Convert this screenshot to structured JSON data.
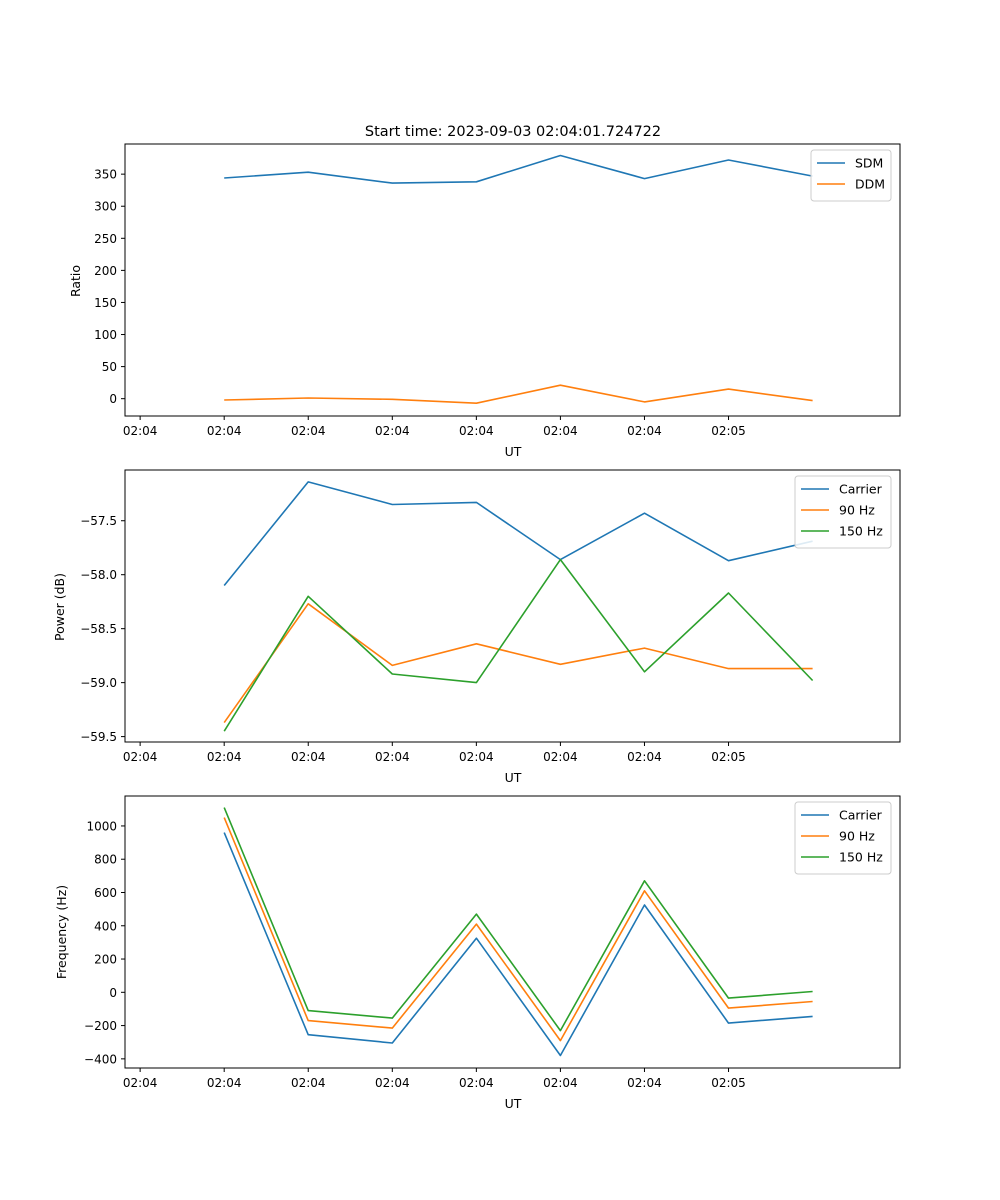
{
  "chart_data": [
    {
      "type": "line",
      "title": "Start time: 2023-09-03 02:04:01.724722",
      "xlabel": "UT",
      "ylabel": "Ratio",
      "x_tick_labels": [
        "02:04",
        "02:04",
        "02:04",
        "02:04",
        "02:04",
        "02:04",
        "02:04",
        "02:05"
      ],
      "x": [
        0.5,
        1.0,
        1.5,
        2.0,
        2.5,
        3.0,
        3.5,
        4.0
      ],
      "xlim": [
        -0.09,
        4.52
      ],
      "ylim": [
        -27,
        397
      ],
      "yticks": [
        0,
        50,
        100,
        150,
        200,
        250,
        300,
        350
      ],
      "legend": "top-right",
      "grid": false,
      "series": [
        {
          "name": "SDM",
          "color": "#1f77b4",
          "values": [
            344,
            353,
            336,
            338,
            379,
            343,
            372,
            347
          ]
        },
        {
          "name": "DDM",
          "color": "#ff7f0e",
          "values": [
            -2,
            1,
            -1,
            -7,
            21,
            -5,
            15,
            -3
          ]
        }
      ]
    },
    {
      "type": "line",
      "title": "",
      "xlabel": "UT",
      "ylabel": "Power (dB)",
      "x_tick_labels": [
        "02:04",
        "02:04",
        "02:04",
        "02:04",
        "02:04",
        "02:04",
        "02:04",
        "02:05"
      ],
      "x": [
        0.5,
        1.0,
        1.5,
        2.0,
        2.5,
        3.0,
        3.5,
        4.0
      ],
      "xlim": [
        -0.09,
        4.52
      ],
      "ylim": [
        -59.55,
        -57.03
      ],
      "yticks": [
        -59.5,
        -59.0,
        -58.5,
        -58.0,
        -57.5
      ],
      "ytick_labels": [
        "−59.5",
        "−59.0",
        "−58.5",
        "−58.0",
        "−57.5"
      ],
      "legend": "top-right",
      "grid": false,
      "series": [
        {
          "name": "Carrier",
          "color": "#1f77b4",
          "values": [
            -58.1,
            -57.14,
            -57.35,
            -57.33,
            -57.86,
            -57.43,
            -57.87,
            -57.69
          ]
        },
        {
          "name": "90 Hz",
          "color": "#ff7f0e",
          "values": [
            -59.37,
            -58.27,
            -58.84,
            -58.64,
            -58.83,
            -58.68,
            -58.87,
            -58.87
          ]
        },
        {
          "name": "150 Hz",
          "color": "#2ca02c",
          "values": [
            -59.45,
            -58.2,
            -58.92,
            -59.0,
            -57.86,
            -58.9,
            -58.17,
            -58.98
          ]
        }
      ]
    },
    {
      "type": "line",
      "title": "",
      "xlabel": "UT",
      "ylabel": "Frequency (Hz)",
      "x_tick_labels": [
        "02:04",
        "02:04",
        "02:04",
        "02:04",
        "02:04",
        "02:04",
        "02:04",
        "02:05"
      ],
      "x": [
        0.5,
        1.0,
        1.5,
        2.0,
        2.5,
        3.0,
        3.5,
        4.0
      ],
      "xlim": [
        -0.09,
        4.52
      ],
      "ylim": [
        -455,
        1180
      ],
      "yticks": [
        -400,
        -200,
        0,
        200,
        400,
        600,
        800,
        1000
      ],
      "ytick_labels": [
        "−400",
        "−200",
        "0",
        "200",
        "400",
        "600",
        "800",
        "1000"
      ],
      "legend": "top-right",
      "grid": false,
      "series": [
        {
          "name": "Carrier",
          "color": "#1f77b4",
          "values": [
            960,
            -255,
            -305,
            325,
            -380,
            525,
            -185,
            -145
          ]
        },
        {
          "name": "90 Hz",
          "color": "#ff7f0e",
          "values": [
            1050,
            -170,
            -215,
            410,
            -290,
            610,
            -95,
            -55
          ]
        },
        {
          "name": "150 Hz",
          "color": "#2ca02c",
          "values": [
            1110,
            -110,
            -155,
            470,
            -230,
            670,
            -35,
            5
          ]
        }
      ]
    }
  ]
}
